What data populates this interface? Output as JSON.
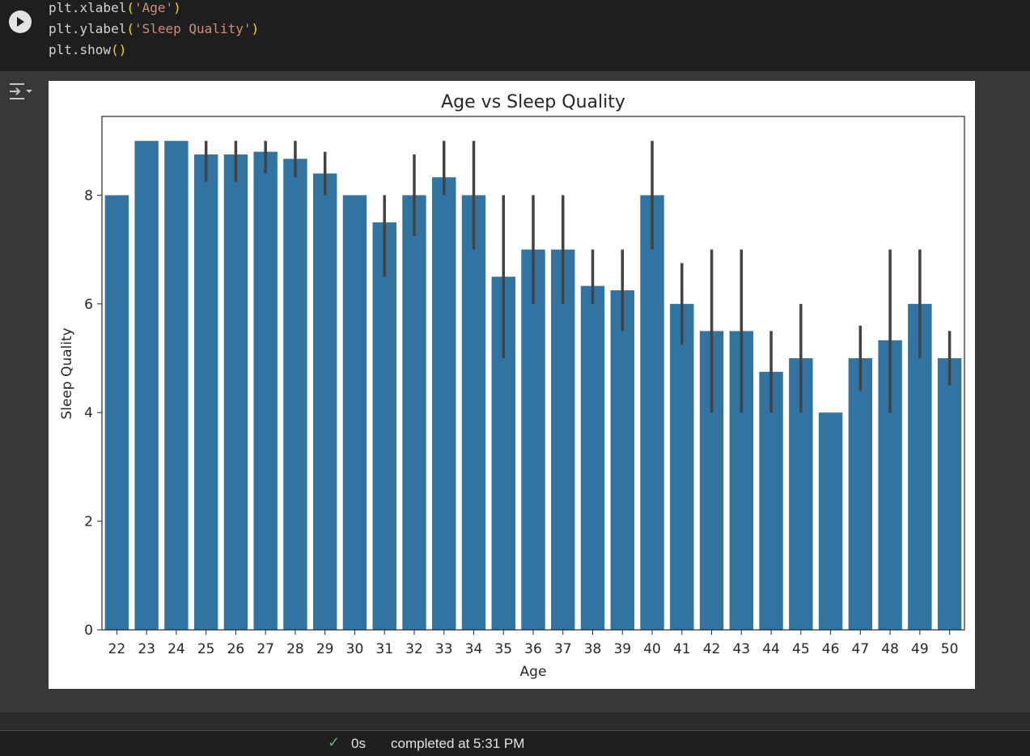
{
  "code": {
    "lines": [
      {
        "fn": "plt.xlabel",
        "arg": "'Age'"
      },
      {
        "fn": "plt.ylabel",
        "arg": "'Sleep Quality'"
      },
      {
        "fn": "plt.show",
        "arg": ""
      }
    ]
  },
  "status": {
    "duration": "0s",
    "completed": "completed at 5:31 PM"
  },
  "colors": {
    "bar": "#3274a1",
    "errorbar": "#424242"
  },
  "icons": {
    "run": "play-circle-icon",
    "output_toggle": "output-toggle-icon",
    "status": "check-icon"
  },
  "chart_data": {
    "type": "bar",
    "title": "Age vs Sleep Quality",
    "xlabel": "Age",
    "ylabel": "Sleep Quality",
    "ylim": [
      0,
      9.45
    ],
    "yticks": [
      0,
      2,
      4,
      6,
      8
    ],
    "grid": false,
    "categories": [
      "22",
      "23",
      "24",
      "25",
      "26",
      "27",
      "28",
      "29",
      "30",
      "31",
      "32",
      "33",
      "34",
      "35",
      "36",
      "37",
      "38",
      "39",
      "40",
      "41",
      "42",
      "43",
      "44",
      "45",
      "46",
      "47",
      "48",
      "49",
      "50"
    ],
    "values": [
      8,
      9,
      9,
      8.75,
      8.75,
      8.8,
      8.67,
      8.4,
      8,
      7.5,
      8,
      8.33,
      8,
      6.5,
      7,
      7,
      6.33,
      6.25,
      8,
      6,
      5.5,
      5.5,
      4.75,
      5,
      4,
      5,
      5.33,
      6,
      5
    ],
    "error_low": [
      null,
      null,
      null,
      8.25,
      8.25,
      8.4,
      8.33,
      8,
      null,
      6.5,
      7.25,
      8,
      7,
      5,
      6,
      6,
      6,
      5.5,
      7,
      5.25,
      4,
      4,
      4,
      4,
      null,
      4.4,
      4,
      5,
      4.5
    ],
    "error_high": [
      null,
      null,
      null,
      9,
      9,
      9,
      9,
      8.8,
      null,
      8,
      8.75,
      9,
      9,
      8,
      8,
      8,
      7,
      7,
      9,
      6.75,
      7,
      7,
      5.5,
      6,
      null,
      5.6,
      7,
      7,
      5.5
    ]
  }
}
